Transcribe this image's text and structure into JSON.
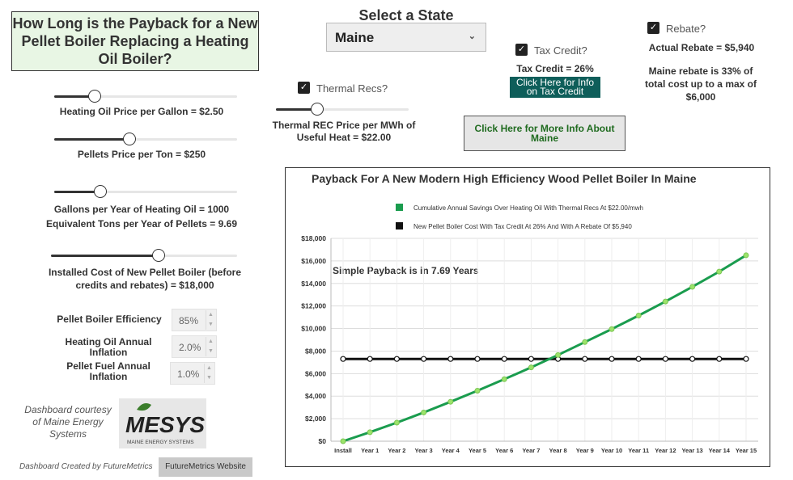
{
  "title": "How Long is the Payback for a New Pellet Boiler Replacing a Heating Oil Boiler?",
  "state_selector": {
    "label": "Select a State",
    "value": "Maine"
  },
  "sliders": [
    {
      "id": "oil-price",
      "label": "Heating Oil Price per Gallon = $2.50",
      "level": 0.22
    },
    {
      "id": "pellet-price",
      "label": "Pellets Price per Ton = $250",
      "level": 0.41
    },
    {
      "id": "gallons",
      "label": "Gallons per Year of Heating Oil = 1000",
      "level": 0.25
    },
    {
      "id": "install-cost",
      "label": "Installed Cost of New Pellet Boiler (before credits and rebates) = $18,000",
      "level": 0.58
    },
    {
      "id": "thermal-rec",
      "label": "Thermal REC Price per MWh of Useful Heat = $22.00",
      "level": 0.31
    }
  ],
  "equivalent_tons": "Equivalent Tons per Year of Pellets = 9.69",
  "thermal_recs": {
    "label": "Thermal Recs?",
    "checked": true
  },
  "tax_credit": {
    "label": "Tax Credit?",
    "checked": true,
    "value_text": "Tax Credit = 26%",
    "button": "Click Here for Info on Tax Credit"
  },
  "rebate": {
    "label": "Rebate?",
    "checked": true,
    "actual": "Actual Rebate = $5,940",
    "note": "Maine rebate is 33% of total cost up to a max of $6,000"
  },
  "more_info_button": "Click Here for More Info About Maine",
  "efficiency": {
    "label": "Pellet Boiler Efficiency",
    "value": "85%"
  },
  "oil_inflation": {
    "label": "Heating Oil Annual Inflation",
    "value": "2.0%"
  },
  "pellet_inflation": {
    "label": "Pellet Fuel Annual Inflation",
    "value": "1.0%"
  },
  "courtesy": "Dashboard courtesy of Maine Energy Systems",
  "logo": {
    "text": "MESYS",
    "subtext": "MAINE ENERGY SYSTEMS"
  },
  "created_by": "Dashboard Created by FutureMetrics",
  "website_button": "FutureMetrics Website",
  "colors": {
    "accent_green": "#1a9c4e",
    "title_bg": "#e8f6e4",
    "teal_button": "#0e5e5a",
    "point_green": "#9be36b"
  },
  "chart_data": {
    "type": "line",
    "title": "Payback For A New Modern High Efficiency Wood Pellet Boiler In Maine",
    "annotation": "Simple Payback is in 7.69 Years",
    "categories": [
      "Install",
      "Year 1",
      "Year 2",
      "Year 3",
      "Year 4",
      "Year 5",
      "Year 6",
      "Year 7",
      "Year 8",
      "Year 9",
      "Year 10",
      "Year 11",
      "Year 12",
      "Year 13",
      "Year 14",
      "Year 15"
    ],
    "ylim": [
      0,
      18000
    ],
    "yticks": [
      "$0",
      "$2,000",
      "$4,000",
      "$6,000",
      "$8,000",
      "$10,000",
      "$12,000",
      "$14,000",
      "$16,000",
      "$18,000"
    ],
    "grid": true,
    "legend_position": "top",
    "series": [
      {
        "name": "Cumulative Annual Savings Over Heating Oil With Thermal Recs At $22.00/mwh",
        "color": "#1a9c4e",
        "values": [
          0,
          800,
          1650,
          2550,
          3500,
          4480,
          5500,
          6550,
          7650,
          8800,
          9950,
          11150,
          12400,
          13700,
          15050,
          16500
        ]
      },
      {
        "name": "New Pellet Boiler Cost With Tax Credit At 26% And With A Rebate Of $5,940",
        "color": "#111111",
        "values": [
          7300,
          7300,
          7300,
          7300,
          7300,
          7300,
          7300,
          7300,
          7300,
          7300,
          7300,
          7300,
          7300,
          7300,
          7300,
          7300
        ]
      }
    ]
  }
}
